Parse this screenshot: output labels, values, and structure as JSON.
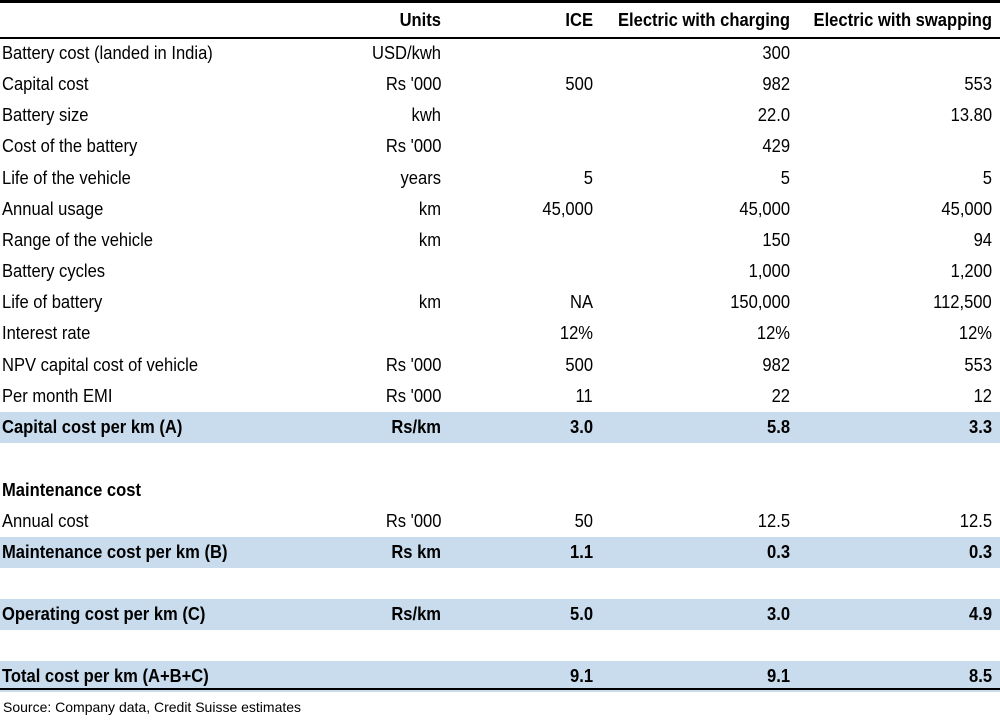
{
  "header": {
    "units": "Units",
    "ice": "ICE",
    "electric_charging": "Electric with charging",
    "electric_swapping": "Electric with swapping"
  },
  "rows": [
    {
      "label": "Battery cost (landed in India)",
      "units": "USD/kwh",
      "ice": "",
      "charging": "300",
      "swapping": ""
    },
    {
      "label": "Capital cost",
      "units": "Rs '000",
      "ice": "500",
      "charging": "982",
      "swapping": "553"
    },
    {
      "label": "Battery size",
      "units": "kwh",
      "ice": "",
      "charging": "22.0",
      "swapping": "13.80"
    },
    {
      "label": "Cost of the battery",
      "units": "Rs '000",
      "ice": "",
      "charging": "429",
      "swapping": ""
    },
    {
      "label": "Life of the vehicle",
      "units": "years",
      "ice": "5",
      "charging": "5",
      "swapping": "5"
    },
    {
      "label": "Annual usage",
      "units": "km",
      "ice": "45,000",
      "charging": "45,000",
      "swapping": "45,000"
    },
    {
      "label": "Range of the vehicle",
      "units": "km",
      "ice": "",
      "charging": "150",
      "swapping": "94"
    },
    {
      "label": "Battery cycles",
      "units": "",
      "ice": "",
      "charging": "1,000",
      "swapping": "1,200"
    },
    {
      "label": "Life of battery",
      "units": "km",
      "ice": "NA",
      "charging": "150,000",
      "swapping": "112,500"
    },
    {
      "label": "Interest rate",
      "units": "",
      "ice": "12%",
      "charging": "12%",
      "swapping": "12%"
    },
    {
      "label": "NPV capital cost of vehicle",
      "units": "Rs '000",
      "ice": "500",
      "charging": "982",
      "swapping": "553"
    },
    {
      "label": "Per month EMI",
      "units": "Rs '000",
      "ice": "11",
      "charging": "22",
      "swapping": "12"
    },
    {
      "label": "Capital cost per km (A)",
      "units": "Rs/km",
      "ice": "3.0",
      "charging": "5.8",
      "swapping": "3.3"
    },
    {
      "label": "Maintenance cost",
      "units": "",
      "ice": "",
      "charging": "",
      "swapping": ""
    },
    {
      "label": "Annual cost",
      "units": "Rs '000",
      "ice": "50",
      "charging": "12.5",
      "swapping": "12.5"
    },
    {
      "label": "Maintenance cost per km (B)",
      "units": "Rs km",
      "ice": "1.1",
      "charging": "0.3",
      "swapping": "0.3"
    },
    {
      "label": "Operating cost per km (C)",
      "units": "Rs/km",
      "ice": "5.0",
      "charging": "3.0",
      "swapping": "4.9"
    },
    {
      "label": "Total cost per km (A+B+C)",
      "units": "",
      "ice": "9.1",
      "charging": "9.1",
      "swapping": "8.5"
    }
  ],
  "source": "Source: Company data, Credit Suisse estimates",
  "colors": {
    "highlight": "#c9dcee",
    "rule": "#000000"
  }
}
